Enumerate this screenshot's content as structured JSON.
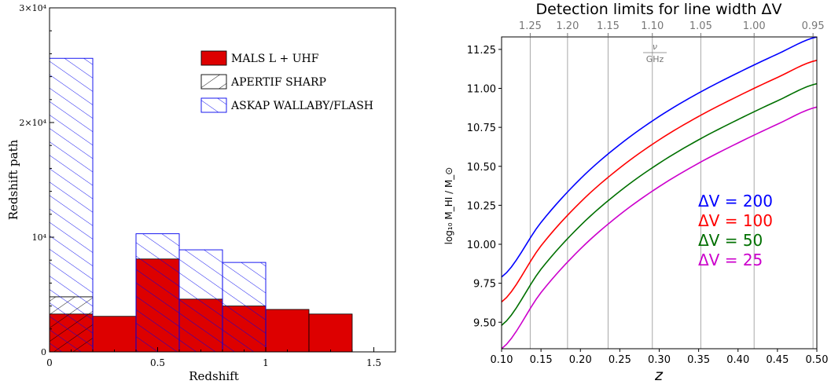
{
  "chart_data": [
    {
      "type": "bar",
      "subtype": "step-histogram",
      "title": "",
      "xlabel": "Redshift",
      "ylabel": "Redshift path",
      "xlim": [
        0,
        1.6
      ],
      "ylim": [
        0,
        30000
      ],
      "x_ticks": [
        {
          "value": 0,
          "label": "0"
        },
        {
          "value": 0.5,
          "label": "0.5"
        },
        {
          "value": 1,
          "label": "1"
        },
        {
          "value": 1.5,
          "label": "1.5"
        }
      ],
      "y_ticks": [
        {
          "value": 0,
          "label": "0"
        },
        {
          "value": 10000,
          "label": "10⁴"
        },
        {
          "value": 20000,
          "label": "2×10⁴"
        },
        {
          "value": 30000,
          "label": "3×10⁴"
        }
      ],
      "legend_position": "upper-right",
      "series": [
        {
          "name": "MALS L + UHF",
          "color": "#dd0000",
          "style": "filled",
          "bins": [
            {
              "x0": 0.0,
              "x1": 0.2,
              "value": 3300
            },
            {
              "x0": 0.2,
              "x1": 0.4,
              "value": 3100
            },
            {
              "x0": 0.4,
              "x1": 0.6,
              "value": 8100
            },
            {
              "x0": 0.6,
              "x1": 0.8,
              "value": 4600
            },
            {
              "x0": 0.8,
              "x1": 1.0,
              "value": 4000
            },
            {
              "x0": 1.0,
              "x1": 1.2,
              "value": 3700
            },
            {
              "x0": 1.2,
              "x1": 1.4,
              "value": 3300
            }
          ]
        },
        {
          "name": "APERTIF SHARP",
          "color": "#000000",
          "style": "hatch-backslash",
          "bins": [
            {
              "x0": 0.0,
              "x1": 0.2,
              "value": 4800
            }
          ]
        },
        {
          "name": "ASKAP WALLABY/FLASH",
          "color": "#0000ee",
          "style": "hatch-slash",
          "bins": [
            {
              "x0": 0.0,
              "x1": 0.2,
              "value": 25600
            },
            {
              "x0": 0.4,
              "x1": 0.6,
              "value": 10300
            },
            {
              "x0": 0.6,
              "x1": 0.8,
              "value": 8900
            },
            {
              "x0": 0.8,
              "x1": 1.0,
              "value": 7800
            }
          ]
        }
      ]
    },
    {
      "type": "line",
      "title": "Detection limits for line width ΔV",
      "xlabel": "z",
      "ylabel": "log₁₀ M_HI / M_⊙",
      "top_axis_label": "ν / GHz",
      "xlim": [
        0.1,
        0.5
      ],
      "ylim": [
        9.33,
        11.33
      ],
      "grid": "vertical lines at top-axis frequency ticks",
      "x_ticks": [
        "0.10",
        "0.15",
        "0.20",
        "0.25",
        "0.30",
        "0.35",
        "0.40",
        "0.45",
        "0.50"
      ],
      "y_ticks": [
        "9.50",
        "9.75",
        "10.00",
        "10.25",
        "10.50",
        "10.75",
        "11.00",
        "11.25"
      ],
      "top_ticks": [
        {
          "label": "1.25",
          "nu": 1.25
        },
        {
          "label": "1.20",
          "nu": 1.2
        },
        {
          "label": "1.15",
          "nu": 1.15
        },
        {
          "label": "1.10",
          "nu": 1.1
        },
        {
          "label": "1.05",
          "nu": 1.05
        },
        {
          "label": "1.00",
          "nu": 1.0
        },
        {
          "label": "0.95",
          "nu": 0.95
        }
      ],
      "rest_frequency_ghz": 1.4204,
      "legend_position": "center-right",
      "x": [
        0.1,
        0.15,
        0.2,
        0.25,
        0.3,
        0.35,
        0.4,
        0.45,
        0.5
      ],
      "series": [
        {
          "name": "ΔV = 200",
          "color": "#0000ff",
          "values": [
            9.79,
            10.14,
            10.42,
            10.64,
            10.82,
            10.97,
            11.1,
            11.22,
            11.33
          ]
        },
        {
          "name": "ΔV = 100",
          "color": "#ff0000",
          "values": [
            9.63,
            9.99,
            10.27,
            10.49,
            10.67,
            10.82,
            10.95,
            11.07,
            11.18
          ]
        },
        {
          "name": "ΔV = 50",
          "color": "#007000",
          "values": [
            9.48,
            9.84,
            10.12,
            10.34,
            10.52,
            10.67,
            10.8,
            10.92,
            11.03
          ]
        },
        {
          "name": "ΔV = 25",
          "color": "#cc00cc",
          "values": [
            9.33,
            9.69,
            9.97,
            10.19,
            10.37,
            10.52,
            10.65,
            10.77,
            10.88
          ]
        }
      ]
    }
  ]
}
